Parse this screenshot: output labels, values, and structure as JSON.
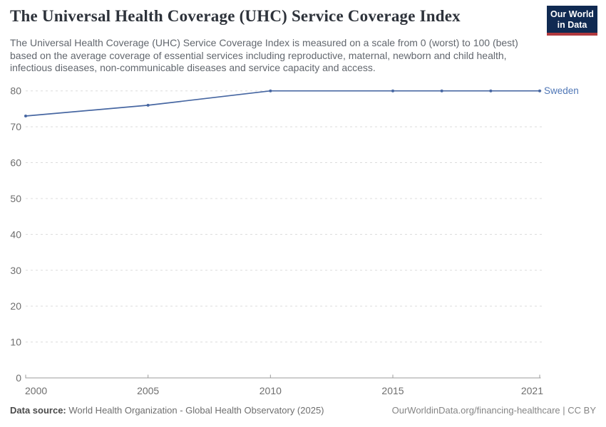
{
  "header": {
    "title": "The Universal Health Coverage (UHC) Service Coverage Index",
    "subtitle": "The Universal Health Coverage (UHC) Service Coverage Index is measured on a scale from 0 (worst) to 100 (best) based on the average coverage of essential services including reproductive, maternal, newborn and child health, infectious diseases, non-communicable diseases and service capacity and access.",
    "logo": {
      "line1": "Our World",
      "line2": "in Data"
    }
  },
  "chart_data": {
    "type": "line",
    "title": "The Universal Health Coverage (UHC) Service Coverage Index",
    "x": [
      2000,
      2005,
      2010,
      2015,
      2017,
      2019,
      2021
    ],
    "series": [
      {
        "name": "Sweden",
        "color": "#4767a2",
        "label_color": "#5077b6",
        "values": [
          73,
          76,
          80,
          80,
          80,
          80,
          80
        ]
      }
    ],
    "xlim": [
      2000,
      2021
    ],
    "ylim": [
      0,
      80
    ],
    "yticks": [
      0,
      10,
      20,
      30,
      40,
      50,
      60,
      70,
      80
    ],
    "xtick_years": [
      2000,
      2005,
      2010,
      2015,
      2021
    ],
    "xtick_labels": [
      "2000",
      "2005",
      "2010",
      "2015",
      "2021"
    ],
    "grid": "horizontal-dashed",
    "legend_position": "right-end-of-line",
    "xlabel": "",
    "ylabel": ""
  },
  "footer": {
    "source_label": "Data source:",
    "source_text": " World Health Organization - Global Health Observatory (2025)",
    "credit": "OurWorldinData.org/financing-healthcare | CC BY"
  },
  "colors": {
    "title": "#2e333b",
    "subtitle": "#62676e",
    "axis_text": "#6e6e6e",
    "gridline": "#dcdcdc",
    "axis_line": "#9b9b9b",
    "logo_bg": "#102a52",
    "logo_bar": "#b0393e",
    "series_blue": "#4767a2",
    "source_text": "#6e6e6e",
    "credit_text": "#858585"
  }
}
